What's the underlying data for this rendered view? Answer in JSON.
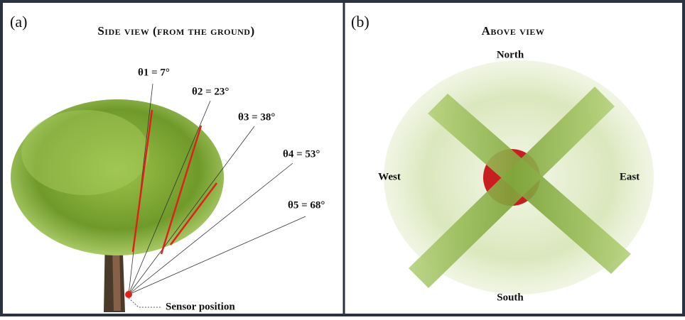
{
  "panels": [
    {
      "label": "(a)",
      "title": "Side view (from the ground)",
      "angles": [
        "θ1 = 7°",
        "θ2 = 23°",
        "θ3 = 38°",
        "θ4 = 53°",
        "θ5 = 68°"
      ],
      "sensor_label": "Sensor position"
    },
    {
      "label": "(b)",
      "title": "Above view",
      "directions": {
        "north": "North",
        "south": "South",
        "west": "West",
        "east": "East"
      }
    }
  ]
}
